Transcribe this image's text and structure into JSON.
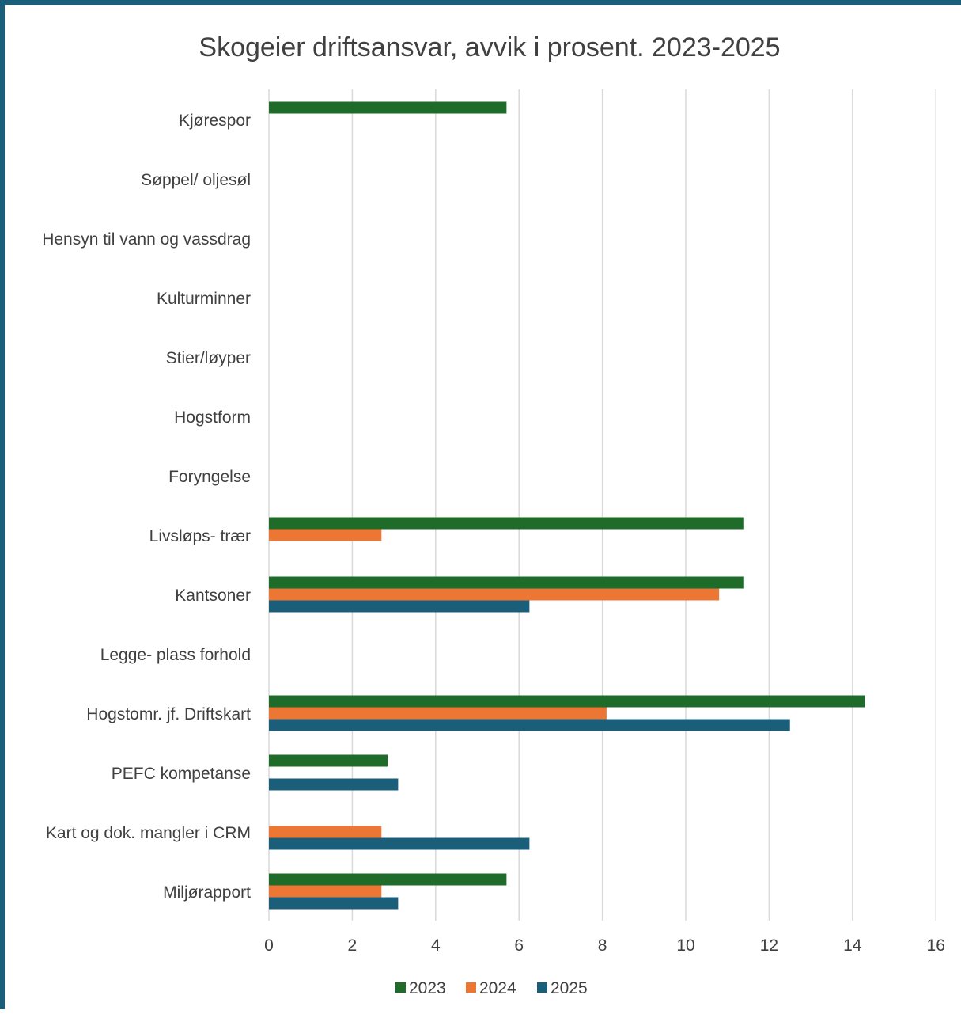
{
  "chart_data": {
    "type": "bar",
    "orientation": "horizontal",
    "title": "Skogeier driftsansvar, avvik i prosent. 2023-2025",
    "categories": [
      "Kjørespor",
      "Søppel/ oljesøl",
      "Hensyn til vann og vassdrag",
      "Kulturminner",
      "Stier/løyper",
      "Hogstform",
      "Foryngelse",
      "Livsløps- trær",
      "Kantsoner",
      "Legge- plass forhold",
      "Hogstomr. jf. Driftskart",
      "PEFC kompetanse",
      "Kart og dok. mangler i CRM",
      "Miljørapport"
    ],
    "series": [
      {
        "name": "2023",
        "color": "#1e6b2a",
        "values": [
          5.7,
          0,
          0,
          0,
          0,
          0,
          0,
          11.4,
          11.4,
          0,
          14.3,
          2.85,
          0,
          5.7
        ]
      },
      {
        "name": "2024",
        "color": "#ec7634",
        "values": [
          0,
          0,
          0,
          0,
          0,
          0,
          0,
          2.7,
          10.8,
          0,
          8.1,
          0,
          2.7,
          2.7
        ]
      },
      {
        "name": "2025",
        "color": "#1b5e7a",
        "values": [
          0,
          0,
          0,
          0,
          0,
          0,
          0,
          0,
          6.25,
          0,
          12.5,
          3.1,
          6.25,
          3.1
        ]
      }
    ],
    "xlim": [
      0,
      16
    ],
    "xticks": [
      "0",
      "2",
      "4",
      "6",
      "8",
      "10",
      "12",
      "14",
      "16"
    ],
    "grid": true,
    "legend_position": "bottom"
  }
}
